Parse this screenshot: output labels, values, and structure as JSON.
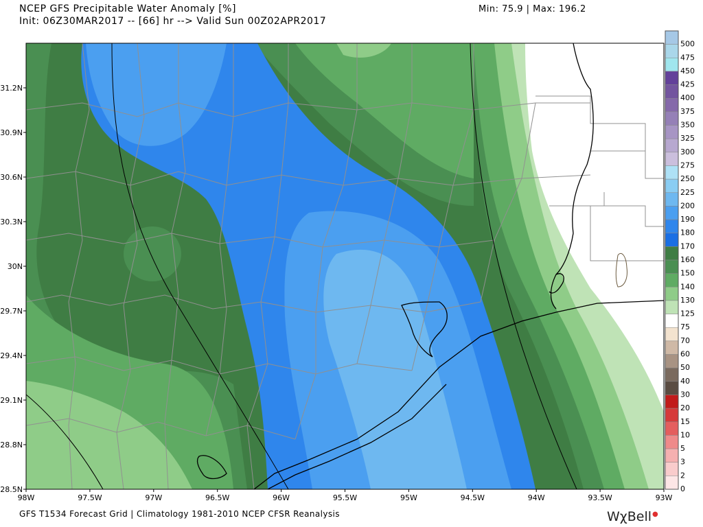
{
  "header": {
    "title": "NCEP GFS Precipitable Water Anomaly [%]",
    "init_line": "Init: 06Z30MAR2017 -- [66] hr --> Valid Sun 00Z02APR2017",
    "minmax": "Min: 75.9 | Max: 196.2"
  },
  "footer": {
    "text": "GFS T1534 Forecast Grid | Climatology 1981-2010 NCEP CFSR Reanalysis",
    "brand": "WχBell"
  },
  "axes": {
    "lon_labels": [
      "98W",
      "97.5W",
      "97W",
      "96.5W",
      "96W",
      "95.5W",
      "95W",
      "94.5W",
      "94W",
      "93.5W",
      "93W"
    ],
    "lat_labels": [
      "31.2N",
      "30.9N",
      "30.6N",
      "30.3N",
      "30N",
      "29.7N",
      "29.4N",
      "29.1N",
      "28.8N",
      "28.5N"
    ]
  },
  "colorbar": {
    "levels": [
      {
        "label": "500",
        "color": "#a6c8e6"
      },
      {
        "label": "475",
        "color": "#aad7ea"
      },
      {
        "label": "450",
        "color": "#a0e6ee"
      },
      {
        "label": "425",
        "color": "#63419a"
      },
      {
        "label": "400",
        "color": "#73559f"
      },
      {
        "label": "375",
        "color": "#8569aa"
      },
      {
        "label": "350",
        "color": "#9580b7"
      },
      {
        "label": "325",
        "color": "#a795c4"
      },
      {
        "label": "300",
        "color": "#b7a8d0"
      },
      {
        "label": "275",
        "color": "#cbbfdd"
      },
      {
        "label": "250",
        "color": "#aee1f6"
      },
      {
        "label": "225",
        "color": "#8acdf3"
      },
      {
        "label": "200",
        "color": "#6eb8f0"
      },
      {
        "label": "190",
        "color": "#4b9ff0"
      },
      {
        "label": "180",
        "color": "#2f86ec"
      },
      {
        "label": "170",
        "color": "#1a6fe4"
      },
      {
        "label": "160",
        "color": "#3f7d44"
      },
      {
        "label": "150",
        "color": "#4a8f52"
      },
      {
        "label": "140",
        "color": "#5fab63"
      },
      {
        "label": "130",
        "color": "#8fcc88"
      },
      {
        "label": "125",
        "color": "#bfe3b6"
      },
      {
        "label": "75",
        "color": "#ffffff"
      },
      {
        "label": "70",
        "color": "#f3e3cf"
      },
      {
        "label": "60",
        "color": "#cfb9a6"
      },
      {
        "label": "50",
        "color": "#a89383"
      },
      {
        "label": "40",
        "color": "#7a6a5e"
      },
      {
        "label": "30",
        "color": "#5a4c42"
      },
      {
        "label": "20",
        "color": "#c11b1b"
      },
      {
        "label": "15",
        "color": "#d63a3a"
      },
      {
        "label": "10",
        "color": "#e45e5e"
      },
      {
        "label": "5",
        "color": "#ef8a8a"
      },
      {
        "label": "3",
        "color": "#f5b0b0"
      },
      {
        "label": "2",
        "color": "#f9cccc"
      },
      {
        "label": "0",
        "color": "#fde6e6"
      }
    ]
  },
  "colors": {
    "dark_green": "#3f7d44",
    "mid_green": "#4a8f52",
    "green": "#5fab63",
    "light_green": "#8fcc88",
    "pale_green": "#bfe3b6",
    "blue_dark": "#2f86ec",
    "blue_mid": "#4b9ff0",
    "blue_light": "#6eb8f0",
    "border_line": "#909090",
    "coast": "#000000",
    "brand_dot": "#e03030"
  }
}
